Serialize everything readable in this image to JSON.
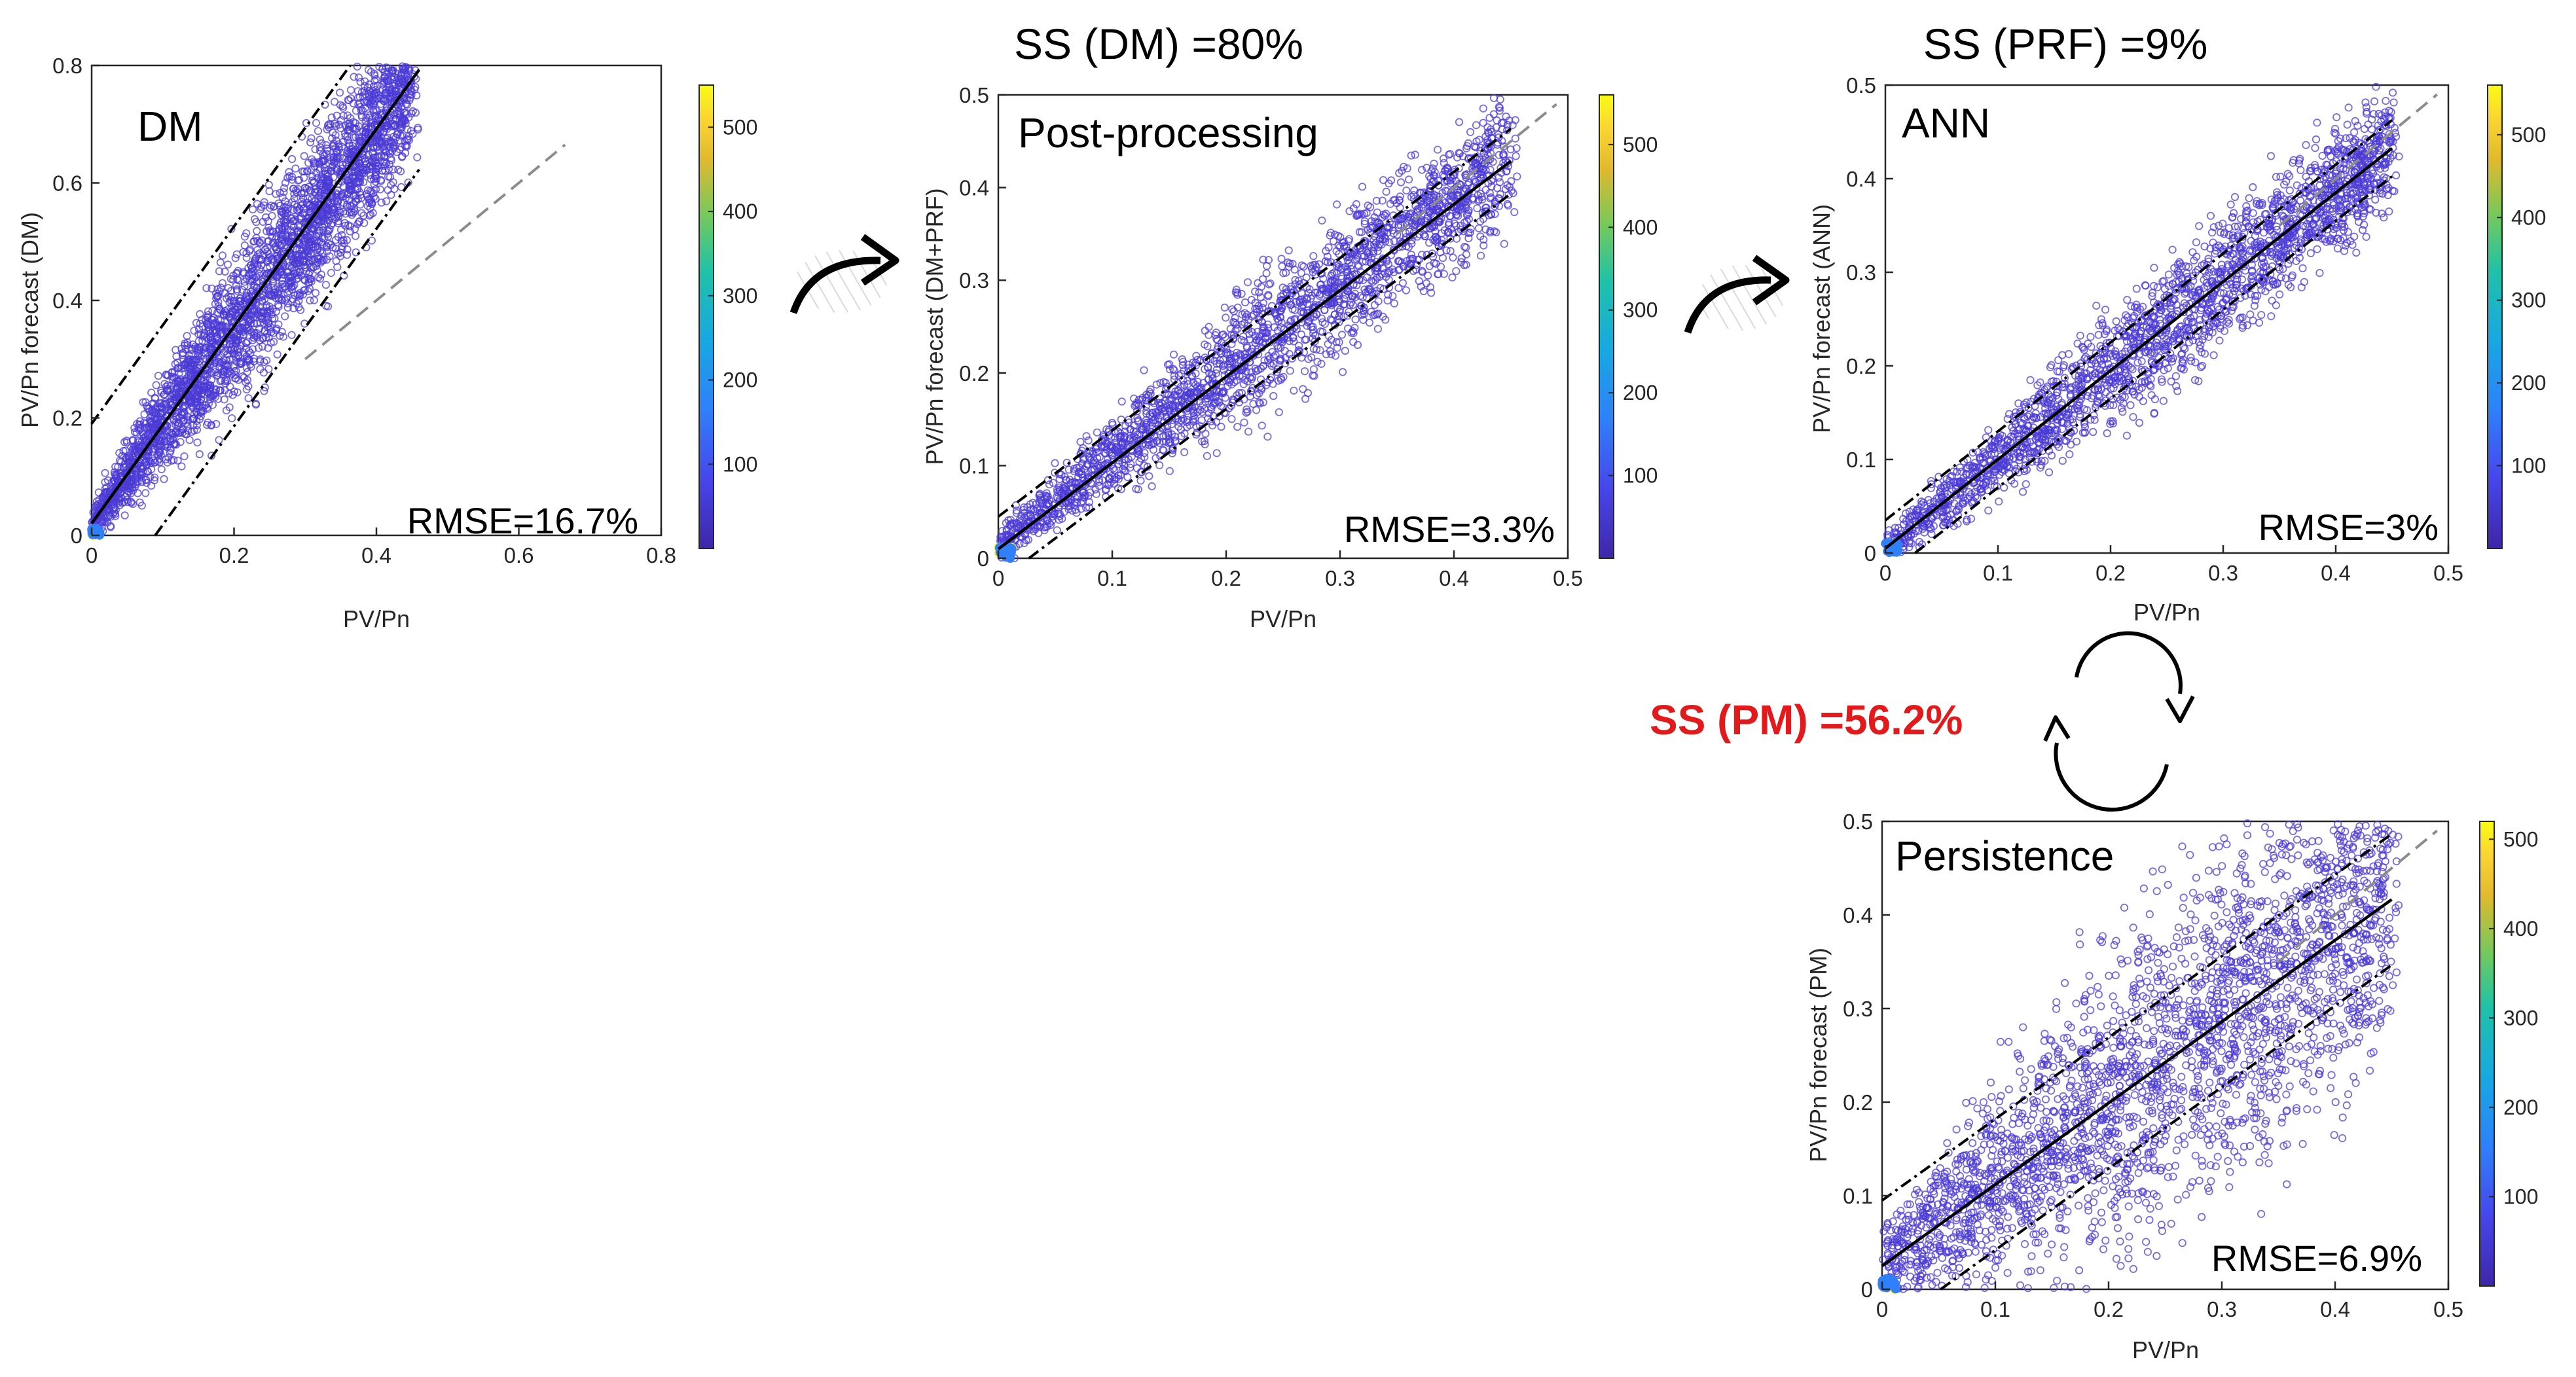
{
  "figure": {
    "ss_dm": "SS (DM) =80%",
    "ss_prf": "SS (PRF) =9%",
    "ss_pm": "SS (PM) =56.2%"
  },
  "colors": {
    "point": "#4b3bd6",
    "fit": "#000000",
    "identity": "#8c8c8c",
    "accent_red": "#e31a1c"
  },
  "chart_data": [
    {
      "type": "scatter",
      "id": "dm",
      "title": "DM",
      "xlabel": "PV/Pn",
      "ylabel": "PV/Pn forecast (DM)",
      "xlim": [
        0,
        0.8
      ],
      "ylim": [
        0,
        0.8
      ],
      "xticks": [
        0,
        0.2,
        0.4,
        0.6,
        0.8
      ],
      "yticks": [
        0,
        0.2,
        0.4,
        0.6,
        0.8
      ],
      "xticklabels": [
        "0",
        "0.2",
        "0.4",
        "0.6",
        "0.8"
      ],
      "yticklabels": [
        "0",
        "0.2",
        "0.4",
        "0.6",
        "0.8"
      ],
      "rmse_label": "RMSE=16.7%",
      "fit": {
        "slope": 1.68,
        "intercept": 0.02,
        "band": 0.17,
        "x_range": [
          0,
          0.46
        ]
      },
      "identity_range": [
        0.3,
        0.665
      ],
      "scatter": {
        "n": 3000,
        "x_max": 0.45,
        "slope": 1.68,
        "intercept": 0.02,
        "spread": 0.06
      },
      "colorbar": {
        "range": [
          0,
          550
        ],
        "ticks": [
          100,
          200,
          300,
          400,
          500
        ],
        "ticklabels": [
          "100",
          "200",
          "300",
          "400",
          "500"
        ]
      }
    },
    {
      "type": "scatter",
      "id": "post",
      "title": "Post-processing",
      "xlabel": "PV/Pn",
      "ylabel": "PV/Pn forecast (DM+PRF)",
      "xlim": [
        0,
        0.5
      ],
      "ylim": [
        0,
        0.5
      ],
      "xticks": [
        0,
        0.1,
        0.2,
        0.3,
        0.4,
        0.5
      ],
      "yticks": [
        0,
        0.1,
        0.2,
        0.3,
        0.4,
        0.5
      ],
      "xticklabels": [
        "0",
        "0.1",
        "0.2",
        "0.3",
        "0.4",
        "0.5"
      ],
      "yticklabels": [
        "0",
        "0.1",
        "0.2",
        "0.3",
        "0.4",
        "0.5"
      ],
      "rmse_label": "RMSE=3.3%",
      "fit": {
        "slope": 0.93,
        "intercept": 0.01,
        "band": 0.035,
        "x_range": [
          0,
          0.45
        ]
      },
      "identity_range": [
        0.35,
        0.49
      ],
      "scatter": {
        "n": 2200,
        "x_max": 0.45,
        "slope": 0.93,
        "intercept": 0.015,
        "spread": 0.032
      },
      "colorbar": {
        "range": [
          0,
          560
        ],
        "ticks": [
          100,
          200,
          300,
          400,
          500
        ],
        "ticklabels": [
          "100",
          "200",
          "300",
          "400",
          "500"
        ]
      }
    },
    {
      "type": "scatter",
      "id": "ann",
      "title": "ANN",
      "xlabel": "PV/Pn",
      "ylabel": "PV/Pn forecast (ANN)",
      "xlim": [
        0,
        0.5
      ],
      "ylim": [
        0,
        0.5
      ],
      "xticks": [
        0,
        0.1,
        0.2,
        0.3,
        0.4,
        0.5
      ],
      "yticks": [
        0,
        0.1,
        0.2,
        0.3,
        0.4,
        0.5
      ],
      "xticklabels": [
        "0",
        "0.1",
        "0.2",
        "0.3",
        "0.4",
        "0.5"
      ],
      "yticklabels": [
        "0",
        "0.1",
        "0.2",
        "0.3",
        "0.4",
        "0.5"
      ],
      "rmse_label": "RMSE=3%",
      "fit": {
        "slope": 0.95,
        "intercept": 0.005,
        "band": 0.03,
        "x_range": [
          0,
          0.45
        ]
      },
      "identity_range": [
        0.35,
        0.49
      ],
      "scatter": {
        "n": 2200,
        "x_max": 0.45,
        "slope": 0.95,
        "intercept": 0.005,
        "spread": 0.03
      },
      "colorbar": {
        "range": [
          0,
          560
        ],
        "ticks": [
          100,
          200,
          300,
          400,
          500
        ],
        "ticklabels": [
          "100",
          "200",
          "300",
          "400",
          "500"
        ]
      }
    },
    {
      "type": "scatter",
      "id": "pm",
      "title": "Persistence",
      "xlabel": "PV/Pn",
      "ylabel": "PV/Pn forecast (PM)",
      "xlim": [
        0,
        0.5
      ],
      "ylim": [
        0,
        0.5
      ],
      "xticks": [
        0,
        0.1,
        0.2,
        0.3,
        0.4,
        0.5
      ],
      "yticks": [
        0,
        0.1,
        0.2,
        0.3,
        0.4,
        0.5
      ],
      "xticklabels": [
        "0",
        "0.1",
        "0.2",
        "0.3",
        "0.4",
        "0.5"
      ],
      "yticklabels": [
        "0",
        "0.1",
        "0.2",
        "0.3",
        "0.4",
        "0.5"
      ],
      "rmse_label": "RMSE=6.9%",
      "fit": {
        "slope": 0.87,
        "intercept": 0.025,
        "band": 0.07,
        "x_range": [
          0,
          0.45
        ]
      },
      "identity_range": [
        0.35,
        0.49
      ],
      "scatter": {
        "n": 2600,
        "x_max": 0.45,
        "slope": 0.87,
        "intercept": 0.025,
        "spread": 0.075
      },
      "colorbar": {
        "range": [
          0,
          520
        ],
        "ticks": [
          100,
          200,
          300,
          400,
          500
        ],
        "ticklabels": [
          "100",
          "200",
          "300",
          "400",
          "500"
        ]
      }
    }
  ]
}
